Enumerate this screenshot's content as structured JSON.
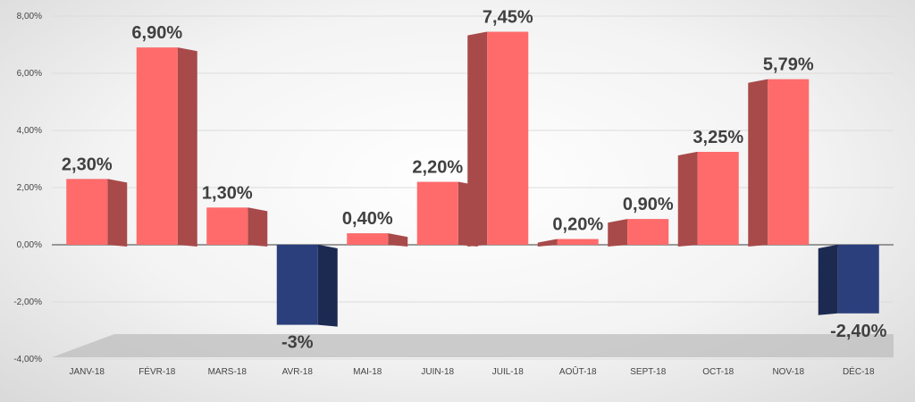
{
  "chart_data": {
    "type": "bar",
    "categories": [
      "JANV-18",
      "FÉVR-18",
      "MARS-18",
      "AVR-18",
      "MAI-18",
      "JUIN-18",
      "JUIL-18",
      "AOÛT-18",
      "SEPT-18",
      "OCT-18",
      "NOV-18",
      "DÉC-18"
    ],
    "values": [
      2.3,
      6.9,
      1.3,
      -2.8,
      0.4,
      2.2,
      7.45,
      0.2,
      0.9,
      3.25,
      5.79,
      -2.4
    ],
    "data_labels": [
      "2,30%",
      "6,90%",
      "1,30%",
      "-3%",
      "0,40%",
      "2,20%",
      "7,45%",
      "0,20%",
      "0,90%",
      "3,25%",
      "5,79%",
      "-2,40%"
    ],
    "y_ticks": [
      8,
      6,
      4,
      2,
      0,
      -2,
      -4
    ],
    "y_tick_labels": [
      "8,00%",
      "6,00%",
      "4,00%",
      "2,00%",
      "0,00%",
      "-2,00%",
      "-4,00%"
    ],
    "ylim": [
      -4,
      8
    ],
    "grid": true,
    "title": "",
    "xlabel": "",
    "ylabel": "",
    "colors": {
      "positive_front": "#ff6b6b",
      "positive_side": "#a84a4a",
      "negative_front": "#2b3f7d",
      "negative_side": "#1c2a52",
      "floor": "#bdbdbd"
    }
  }
}
